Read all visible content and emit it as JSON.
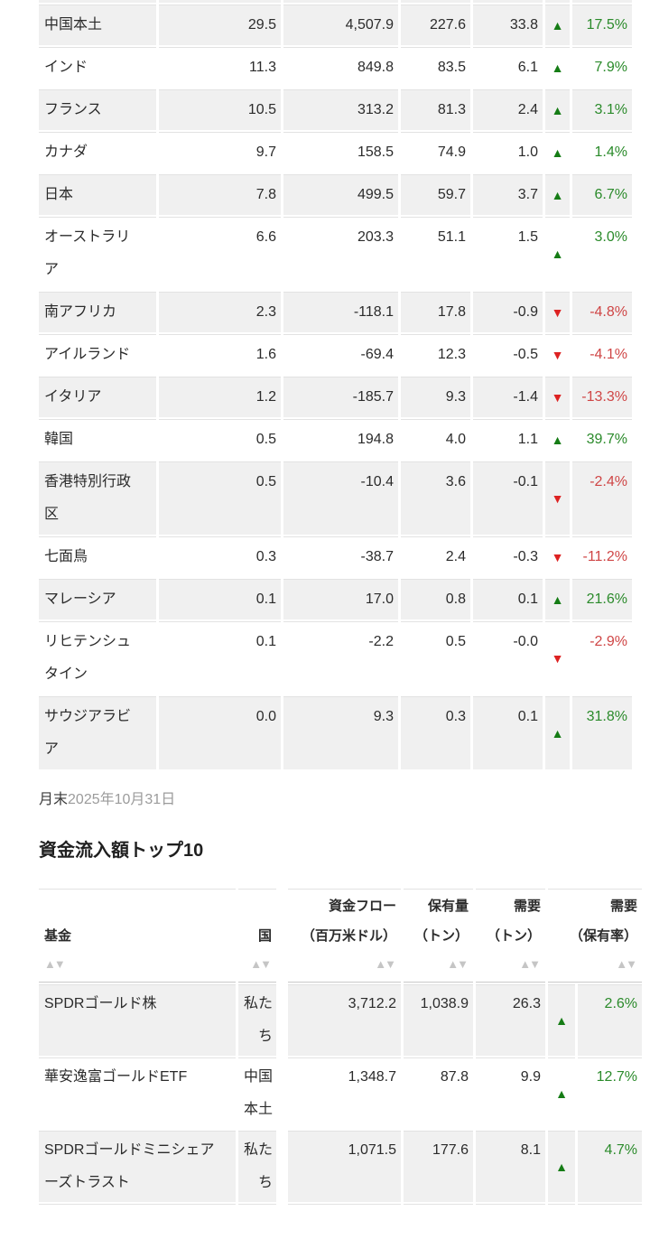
{
  "theme": {
    "text": "#2b2b2b",
    "row_bg": "#f0f0f0",
    "border": "#e2e2e2",
    "header_border": "#c9c9c9",
    "green_arrow": "#157c15",
    "green_text": "#2a8a2a",
    "red_arrow": "#dd2222",
    "red_text": "#cf4545",
    "date_color": "#9b9b9b",
    "sort_icon": "#c5c5c5"
  },
  "icons": {
    "up_arrow": "▲",
    "down_arrow": "▼",
    "sort_asc": "▲",
    "sort_desc": "▼"
  },
  "region_table": {
    "rows": [
      {
        "name": "中国本土",
        "v1": "29.5",
        "v2": "4,507.9",
        "v3": "227.6",
        "v4": "33.8",
        "dir": "up",
        "pct": "17.5%"
      },
      {
        "name": "インド",
        "v1": "11.3",
        "v2": "849.8",
        "v3": "83.5",
        "v4": "6.1",
        "dir": "up",
        "pct": "7.9%"
      },
      {
        "name": "フランス",
        "v1": "10.5",
        "v2": "313.2",
        "v3": "81.3",
        "v4": "2.4",
        "dir": "up",
        "pct": "3.1%"
      },
      {
        "name": "カナダ",
        "v1": "9.7",
        "v2": "158.5",
        "v3": "74.9",
        "v4": "1.0",
        "dir": "up",
        "pct": "1.4%"
      },
      {
        "name": "日本",
        "v1": "7.8",
        "v2": "499.5",
        "v3": "59.7",
        "v4": "3.7",
        "dir": "up",
        "pct": "6.7%"
      },
      {
        "name": "オーストラリア",
        "v1": "6.6",
        "v2": "203.3",
        "v3": "51.1",
        "v4": "1.5",
        "dir": "up",
        "pct": "3.0%"
      },
      {
        "name": "南アフリカ",
        "v1": "2.3",
        "v2": "-118.1",
        "v3": "17.8",
        "v4": "-0.9",
        "dir": "down",
        "pct": "-4.8%"
      },
      {
        "name": "アイルランド",
        "v1": "1.6",
        "v2": "-69.4",
        "v3": "12.3",
        "v4": "-0.5",
        "dir": "down",
        "pct": "-4.1%"
      },
      {
        "name": "イタリア",
        "v1": "1.2",
        "v2": "-185.7",
        "v3": "9.3",
        "v4": "-1.4",
        "dir": "down",
        "pct": "-13.3%"
      },
      {
        "name": "韓国",
        "v1": "0.5",
        "v2": "194.8",
        "v3": "4.0",
        "v4": "1.1",
        "dir": "up",
        "pct": "39.7%"
      },
      {
        "name": "香港特別行政区",
        "v1": "0.5",
        "v2": "-10.4",
        "v3": "3.6",
        "v4": "-0.1",
        "dir": "down",
        "pct": "-2.4%"
      },
      {
        "name": "七面鳥",
        "v1": "0.3",
        "v2": "-38.7",
        "v3": "2.4",
        "v4": "-0.3",
        "dir": "down",
        "pct": "-11.2%"
      },
      {
        "name": "マレーシア",
        "v1": "0.1",
        "v2": "17.0",
        "v3": "0.8",
        "v4": "0.1",
        "dir": "up",
        "pct": "21.6%"
      },
      {
        "name": "リヒテンシュタイン",
        "v1": "0.1",
        "v2": "-2.2",
        "v3": "0.5",
        "v4": "-0.0",
        "dir": "down",
        "pct": "-2.9%"
      },
      {
        "name": "サウジアラビア",
        "v1": "0.0",
        "v2": "9.3",
        "v3": "0.3",
        "v4": "0.1",
        "dir": "up",
        "pct": "31.8%"
      }
    ]
  },
  "footnote": {
    "label": "月末",
    "date": "2025年10月31日"
  },
  "section": {
    "title": "資金流入額トップ10"
  },
  "funds_table": {
    "columns": [
      {
        "line1": "",
        "line2": "基金"
      },
      {
        "line1": "",
        "line2": "国"
      },
      {
        "line1": "資金フロー",
        "line2": "（百万米ドル）"
      },
      {
        "line1": "保有量",
        "line2": "（トン）"
      },
      {
        "line1": "需要",
        "line2": "（トン）"
      },
      {
        "line1": "需要",
        "line2": "（保有率）"
      }
    ],
    "rows": [
      {
        "fund": "SPDRゴールド株",
        "country": "私たち",
        "flow": "3,712.2",
        "holdings": "1,038.9",
        "demand": "26.3",
        "dir": "up",
        "pct": "2.6%"
      },
      {
        "fund": "華安逸富ゴールドETF",
        "country": "中国本土",
        "flow": "1,348.7",
        "holdings": "87.8",
        "demand": "9.9",
        "dir": "up",
        "pct": "12.7%"
      },
      {
        "fund": "SPDRゴールドミニシェアーズトラスト",
        "country": "私たち",
        "flow": "1,071.5",
        "holdings": "177.6",
        "demand": "8.1",
        "dir": "up",
        "pct": "4.7%"
      }
    ]
  }
}
